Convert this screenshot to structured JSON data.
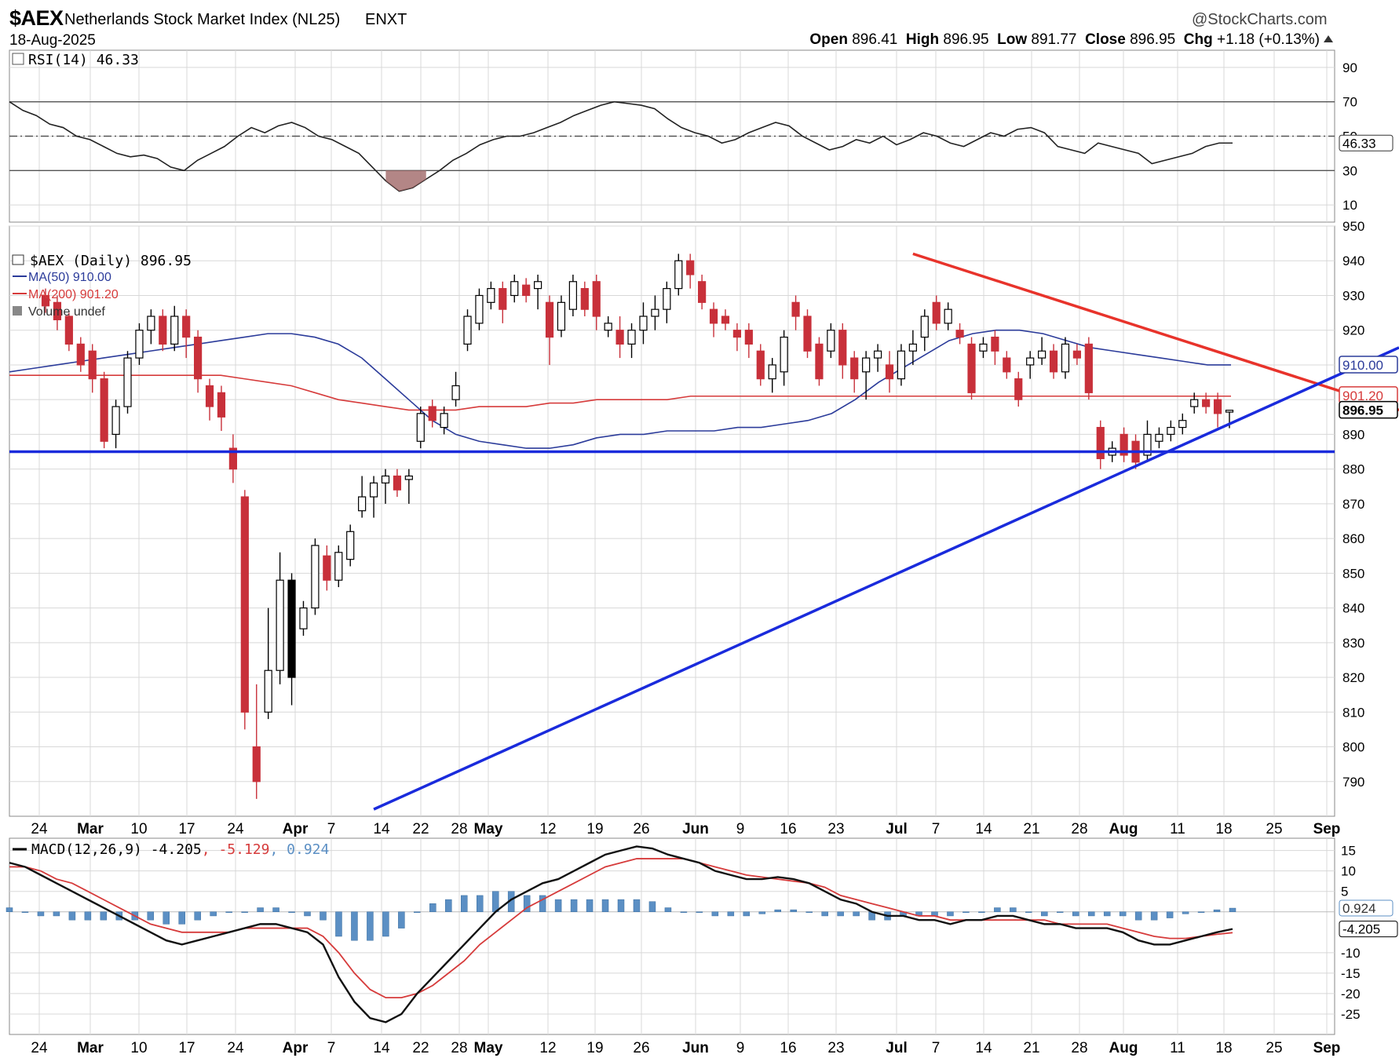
{
  "header": {
    "ticker": "$AEX",
    "index_name": "Netherlands Stock Market Index (NL25)",
    "exchange": "ENXT",
    "date": "18-Aug-2025",
    "watermark": "@StockCharts.com",
    "open_label": "Open",
    "open": "896.41",
    "high_label": "High",
    "high": "896.95",
    "low_label": "Low",
    "low": "891.77",
    "close_label": "Close",
    "close": "896.95",
    "chg_label": "Chg",
    "chg": "+1.18 (+0.13%)"
  },
  "colors": {
    "up_candle": "#ffffff",
    "down_candle": "#c8303a",
    "black_candle": "#000000",
    "ma50": "#2b3b9a",
    "ma200": "#d63b3b",
    "trend_red": "#e8332b",
    "trend_blue": "#1a2bdc",
    "macd_hist": "#5b8fc4",
    "grid": "#d8d8d8"
  },
  "chart_data": [
    {
      "type": "line",
      "panel": "rsi",
      "legend": "RSI(14) 46.33",
      "last_value_label": "46.33",
      "y_ticks": [
        90,
        70,
        50,
        30,
        10
      ],
      "ylim": [
        0,
        100
      ],
      "reference_levels": [
        70,
        50,
        30
      ],
      "series": [
        {
          "name": "RSI(14)",
          "values": [
            70,
            65,
            62,
            57,
            55,
            50,
            48,
            44,
            40,
            38,
            39,
            37,
            32,
            30,
            36,
            40,
            44,
            50,
            55,
            52,
            56,
            58,
            55,
            50,
            48,
            44,
            40,
            32,
            24,
            18,
            20,
            25,
            30,
            36,
            40,
            45,
            48,
            50,
            50,
            52,
            55,
            58,
            62,
            65,
            68,
            70,
            69,
            68,
            66,
            60,
            55,
            52,
            50,
            46,
            48,
            52,
            55,
            58,
            56,
            50,
            46,
            42,
            44,
            48,
            46,
            50,
            45,
            48,
            52,
            50,
            46,
            44,
            48,
            52,
            50,
            54,
            55,
            52,
            44,
            42,
            40,
            46,
            44,
            42,
            40,
            34,
            36,
            38,
            40,
            44,
            46,
            46
          ]
        }
      ]
    },
    {
      "type": "candlestick",
      "panel": "price",
      "legend": [
        "$AEX (Daily) 896.95",
        "MA(50) 910.00",
        "MA(200) 901.20",
        "Volume undef"
      ],
      "y_ticks": [
        950,
        940,
        930,
        920,
        910,
        900,
        890,
        880,
        870,
        860,
        850,
        840,
        830,
        820,
        810,
        800,
        790
      ],
      "ylim": [
        780,
        950
      ],
      "last_labels": {
        "ma50": "910.00",
        "ma200": "901.20",
        "close": "896.95"
      },
      "x_axis": [
        "24",
        "Mar",
        "10",
        "17",
        "24",
        "Apr",
        "7",
        "14",
        "22",
        "28",
        "May",
        "12",
        "19",
        "26",
        "Jun",
        "9",
        "16",
        "23",
        "Jul",
        "7",
        "14",
        "21",
        "28",
        "Aug",
        "11",
        "18",
        "25",
        "Sep"
      ],
      "candles": [
        {
          "o": 930,
          "c": 927,
          "h": 932,
          "l": 925
        },
        {
          "o": 928,
          "c": 923,
          "h": 930,
          "l": 920
        },
        {
          "o": 924,
          "c": 916,
          "h": 925,
          "l": 914
        },
        {
          "o": 916,
          "c": 910,
          "h": 918,
          "l": 908
        },
        {
          "o": 914,
          "c": 906,
          "h": 916,
          "l": 902
        },
        {
          "o": 906,
          "c": 888,
          "h": 908,
          "l": 886
        },
        {
          "o": 890,
          "c": 898,
          "h": 900,
          "l": 886
        },
        {
          "o": 898,
          "c": 912,
          "h": 914,
          "l": 896
        },
        {
          "o": 912,
          "c": 920,
          "h": 922,
          "l": 910
        },
        {
          "o": 920,
          "c": 924,
          "h": 926,
          "l": 916
        },
        {
          "o": 924,
          "c": 916,
          "h": 926,
          "l": 914
        },
        {
          "o": 916,
          "c": 924,
          "h": 927,
          "l": 914
        },
        {
          "o": 924,
          "c": 918,
          "h": 926,
          "l": 912
        },
        {
          "o": 918,
          "c": 906,
          "h": 920,
          "l": 902
        },
        {
          "o": 904,
          "c": 898,
          "h": 906,
          "l": 894
        },
        {
          "o": 902,
          "c": 895,
          "h": 904,
          "l": 891
        },
        {
          "o": 886,
          "c": 880,
          "h": 890,
          "l": 876
        },
        {
          "o": 872,
          "c": 810,
          "h": 874,
          "l": 805
        },
        {
          "o": 800,
          "c": 790,
          "h": 818,
          "l": 785
        },
        {
          "o": 810,
          "c": 822,
          "h": 840,
          "l": 808
        },
        {
          "o": 822,
          "c": 848,
          "h": 856,
          "l": 818
        },
        {
          "o": 848,
          "c": 820,
          "h": 850,
          "l": 812
        },
        {
          "o": 834,
          "c": 840,
          "h": 842,
          "l": 832
        },
        {
          "o": 840,
          "c": 858,
          "h": 860,
          "l": 838
        },
        {
          "o": 855,
          "c": 848,
          "h": 858,
          "l": 845
        },
        {
          "o": 848,
          "c": 856,
          "h": 858,
          "l": 846
        },
        {
          "o": 854,
          "c": 862,
          "h": 864,
          "l": 852
        },
        {
          "o": 868,
          "c": 872,
          "h": 878,
          "l": 866
        },
        {
          "o": 872,
          "c": 876,
          "h": 878,
          "l": 866
        },
        {
          "o": 876,
          "c": 878,
          "h": 880,
          "l": 870
        },
        {
          "o": 878,
          "c": 874,
          "h": 880,
          "l": 872
        },
        {
          "o": 877,
          "c": 878,
          "h": 880,
          "l": 870
        },
        {
          "o": 888,
          "c": 896,
          "h": 898,
          "l": 886
        },
        {
          "o": 898,
          "c": 894,
          "h": 900,
          "l": 892
        },
        {
          "o": 892,
          "c": 896,
          "h": 898,
          "l": 890
        },
        {
          "o": 900,
          "c": 904,
          "h": 908,
          "l": 898
        },
        {
          "o": 916,
          "c": 924,
          "h": 926,
          "l": 914
        },
        {
          "o": 922,
          "c": 930,
          "h": 932,
          "l": 920
        },
        {
          "o": 928,
          "c": 932,
          "h": 934,
          "l": 926
        },
        {
          "o": 932,
          "c": 926,
          "h": 934,
          "l": 922
        },
        {
          "o": 930,
          "c": 934,
          "h": 936,
          "l": 928
        },
        {
          "o": 933,
          "c": 930,
          "h": 935,
          "l": 928
        },
        {
          "o": 932,
          "c": 934,
          "h": 936,
          "l": 926
        },
        {
          "o": 928,
          "c": 918,
          "h": 930,
          "l": 910
        },
        {
          "o": 920,
          "c": 928,
          "h": 930,
          "l": 918
        },
        {
          "o": 926,
          "c": 934,
          "h": 936,
          "l": 924
        },
        {
          "o": 932,
          "c": 926,
          "h": 934,
          "l": 924
        },
        {
          "o": 934,
          "c": 924,
          "h": 936,
          "l": 920
        },
        {
          "o": 920,
          "c": 922,
          "h": 924,
          "l": 918
        },
        {
          "o": 920,
          "c": 916,
          "h": 924,
          "l": 912
        },
        {
          "o": 916,
          "c": 920,
          "h": 922,
          "l": 912
        },
        {
          "o": 920,
          "c": 924,
          "h": 928,
          "l": 916
        },
        {
          "o": 924,
          "c": 926,
          "h": 930,
          "l": 920
        },
        {
          "o": 926,
          "c": 932,
          "h": 934,
          "l": 922
        },
        {
          "o": 932,
          "c": 940,
          "h": 942,
          "l": 930
        },
        {
          "o": 940,
          "c": 936,
          "h": 942,
          "l": 932
        },
        {
          "o": 934,
          "c": 928,
          "h": 936,
          "l": 926
        },
        {
          "o": 926,
          "c": 922,
          "h": 928,
          "l": 918
        },
        {
          "o": 924,
          "c": 922,
          "h": 926,
          "l": 920
        },
        {
          "o": 920,
          "c": 918,
          "h": 922,
          "l": 914
        },
        {
          "o": 920,
          "c": 916,
          "h": 922,
          "l": 912
        },
        {
          "o": 914,
          "c": 906,
          "h": 916,
          "l": 904
        },
        {
          "o": 906,
          "c": 910,
          "h": 912,
          "l": 902
        },
        {
          "o": 908,
          "c": 918,
          "h": 920,
          "l": 904
        },
        {
          "o": 928,
          "c": 924,
          "h": 930,
          "l": 920
        },
        {
          "o": 924,
          "c": 914,
          "h": 926,
          "l": 912
        },
        {
          "o": 916,
          "c": 906,
          "h": 918,
          "l": 904
        },
        {
          "o": 914,
          "c": 920,
          "h": 922,
          "l": 912
        },
        {
          "o": 920,
          "c": 910,
          "h": 922,
          "l": 906
        },
        {
          "o": 912,
          "c": 906,
          "h": 914,
          "l": 902
        },
        {
          "o": 908,
          "c": 912,
          "h": 914,
          "l": 900
        },
        {
          "o": 912,
          "c": 914,
          "h": 916,
          "l": 908
        },
        {
          "o": 910,
          "c": 906,
          "h": 914,
          "l": 902
        },
        {
          "o": 906,
          "c": 914,
          "h": 916,
          "l": 904
        },
        {
          "o": 914,
          "c": 916,
          "h": 920,
          "l": 910
        },
        {
          "o": 918,
          "c": 924,
          "h": 926,
          "l": 914
        },
        {
          "o": 928,
          "c": 922,
          "h": 930,
          "l": 920
        },
        {
          "o": 922,
          "c": 926,
          "h": 928,
          "l": 920
        },
        {
          "o": 920,
          "c": 918,
          "h": 922,
          "l": 916
        },
        {
          "o": 916,
          "c": 902,
          "h": 918,
          "l": 900
        },
        {
          "o": 914,
          "c": 916,
          "h": 918,
          "l": 912
        },
        {
          "o": 918,
          "c": 914,
          "h": 920,
          "l": 910
        },
        {
          "o": 912,
          "c": 908,
          "h": 914,
          "l": 906
        },
        {
          "o": 906,
          "c": 900,
          "h": 908,
          "l": 898
        },
        {
          "o": 910,
          "c": 912,
          "h": 914,
          "l": 906
        },
        {
          "o": 912,
          "c": 914,
          "h": 918,
          "l": 910
        },
        {
          "o": 914,
          "c": 908,
          "h": 916,
          "l": 906
        },
        {
          "o": 908,
          "c": 916,
          "h": 918,
          "l": 906
        },
        {
          "o": 914,
          "c": 912,
          "h": 916,
          "l": 910
        },
        {
          "o": 916,
          "c": 902,
          "h": 918,
          "l": 900
        },
        {
          "o": 892,
          "c": 883,
          "h": 894,
          "l": 880
        },
        {
          "o": 884,
          "c": 886,
          "h": 888,
          "l": 882
        },
        {
          "o": 890,
          "c": 884,
          "h": 892,
          "l": 882
        },
        {
          "o": 888,
          "c": 882,
          "h": 890,
          "l": 880
        },
        {
          "o": 884,
          "c": 890,
          "h": 894,
          "l": 882
        },
        {
          "o": 888,
          "c": 890,
          "h": 892,
          "l": 886
        },
        {
          "o": 890,
          "c": 892,
          "h": 894,
          "l": 888
        },
        {
          "o": 892,
          "c": 894,
          "h": 896,
          "l": 890
        },
        {
          "o": 898,
          "c": 900,
          "h": 902,
          "l": 896
        },
        {
          "o": 900,
          "c": 898,
          "h": 902,
          "l": 896
        },
        {
          "o": 900,
          "c": 896,
          "h": 902,
          "l": 892
        },
        {
          "o": 896.41,
          "c": 896.95,
          "h": 896.95,
          "l": 891.77
        }
      ],
      "ma50_values": [
        908,
        909,
        910,
        911,
        912,
        913,
        914,
        915,
        916,
        917,
        918,
        919,
        919,
        918,
        916,
        912,
        906,
        900,
        894,
        890,
        888,
        887,
        886,
        886,
        887,
        889,
        890,
        890,
        891,
        891,
        891,
        892,
        892,
        893,
        894,
        896,
        900,
        905,
        909,
        913,
        917,
        919,
        920,
        920,
        919,
        917,
        915,
        914,
        913,
        912,
        911,
        910,
        910
      ],
      "ma200_values": [
        907,
        907,
        907,
        907,
        907,
        907,
        907,
        907,
        907,
        907,
        906,
        905,
        904,
        902,
        900,
        899,
        898,
        897,
        897,
        897,
        898,
        898,
        898,
        899,
        899,
        900,
        900,
        900,
        900,
        901,
        901,
        901,
        901,
        901,
        901,
        901,
        901,
        901,
        901,
        901,
        901,
        901,
        901,
        901,
        901,
        901,
        901,
        901,
        901,
        901,
        901,
        901,
        901
      ],
      "trendlines": [
        {
          "color": "red",
          "from": {
            "date": "Jun 5",
            "value": 942
          },
          "to": {
            "date": "Sep 8",
            "value": 897
          }
        },
        {
          "color": "blue",
          "from": {
            "date": "Apr 1",
            "value": 782
          },
          "to": {
            "date": "Sep 8",
            "value": 915
          }
        },
        {
          "color": "blue",
          "horizontal": true,
          "value": 885
        }
      ]
    },
    {
      "type": "line",
      "panel": "macd",
      "legend": "MACD(12,26,9)",
      "legend_values": [
        "-4.205",
        "-5.129",
        "0.924"
      ],
      "last_labels": [
        "0.924",
        "-4.205"
      ],
      "y_ticks": [
        15,
        10,
        5,
        -10,
        -15,
        -20,
        -25
      ],
      "ylim": [
        -30,
        18
      ],
      "series": [
        {
          "name": "MACD(12,26,9)",
          "values": [
            12,
            11,
            9,
            7,
            5,
            3,
            1,
            -1,
            -3,
            -5,
            -7,
            -8,
            -7,
            -6,
            -5,
            -4,
            -3,
            -3,
            -4,
            -5,
            -8,
            -16,
            -22,
            -26,
            -27,
            -25,
            -20,
            -16,
            -12,
            -8,
            -4,
            0,
            3,
            5,
            7,
            8,
            10,
            12,
            14,
            15,
            16,
            15.5,
            14,
            13,
            12,
            10,
            9,
            8,
            8,
            8.5,
            8,
            7,
            5,
            3,
            2,
            0,
            -1,
            -1,
            -2,
            -2,
            -3,
            -2,
            -2,
            -1,
            -1,
            -2,
            -3,
            -3,
            -4,
            -4,
            -4,
            -5,
            -7,
            -8,
            -8,
            -7,
            -6,
            -5,
            -4.2
          ]
        },
        {
          "name": "signal",
          "values": [
            11,
            11,
            10,
            8,
            7,
            5,
            3,
            1,
            -1,
            -3,
            -4,
            -5,
            -5,
            -5,
            -5,
            -4,
            -4,
            -4,
            -4,
            -4,
            -6,
            -10,
            -15,
            -19,
            -21,
            -21,
            -20,
            -18,
            -15,
            -12,
            -8,
            -5,
            -2,
            1,
            3,
            5,
            7,
            9,
            11,
            12,
            13,
            13,
            13,
            13,
            12,
            11,
            10,
            9,
            8.5,
            8,
            7.5,
            7,
            6,
            4,
            3,
            2,
            1,
            0,
            -1,
            -1,
            -2,
            -2,
            -2,
            -2,
            -2,
            -2,
            -2,
            -3,
            -3,
            -3,
            -3,
            -4,
            -5,
            -6,
            -6.5,
            -6.5,
            -6,
            -5.5,
            -5.1
          ]
        }
      ]
    }
  ]
}
